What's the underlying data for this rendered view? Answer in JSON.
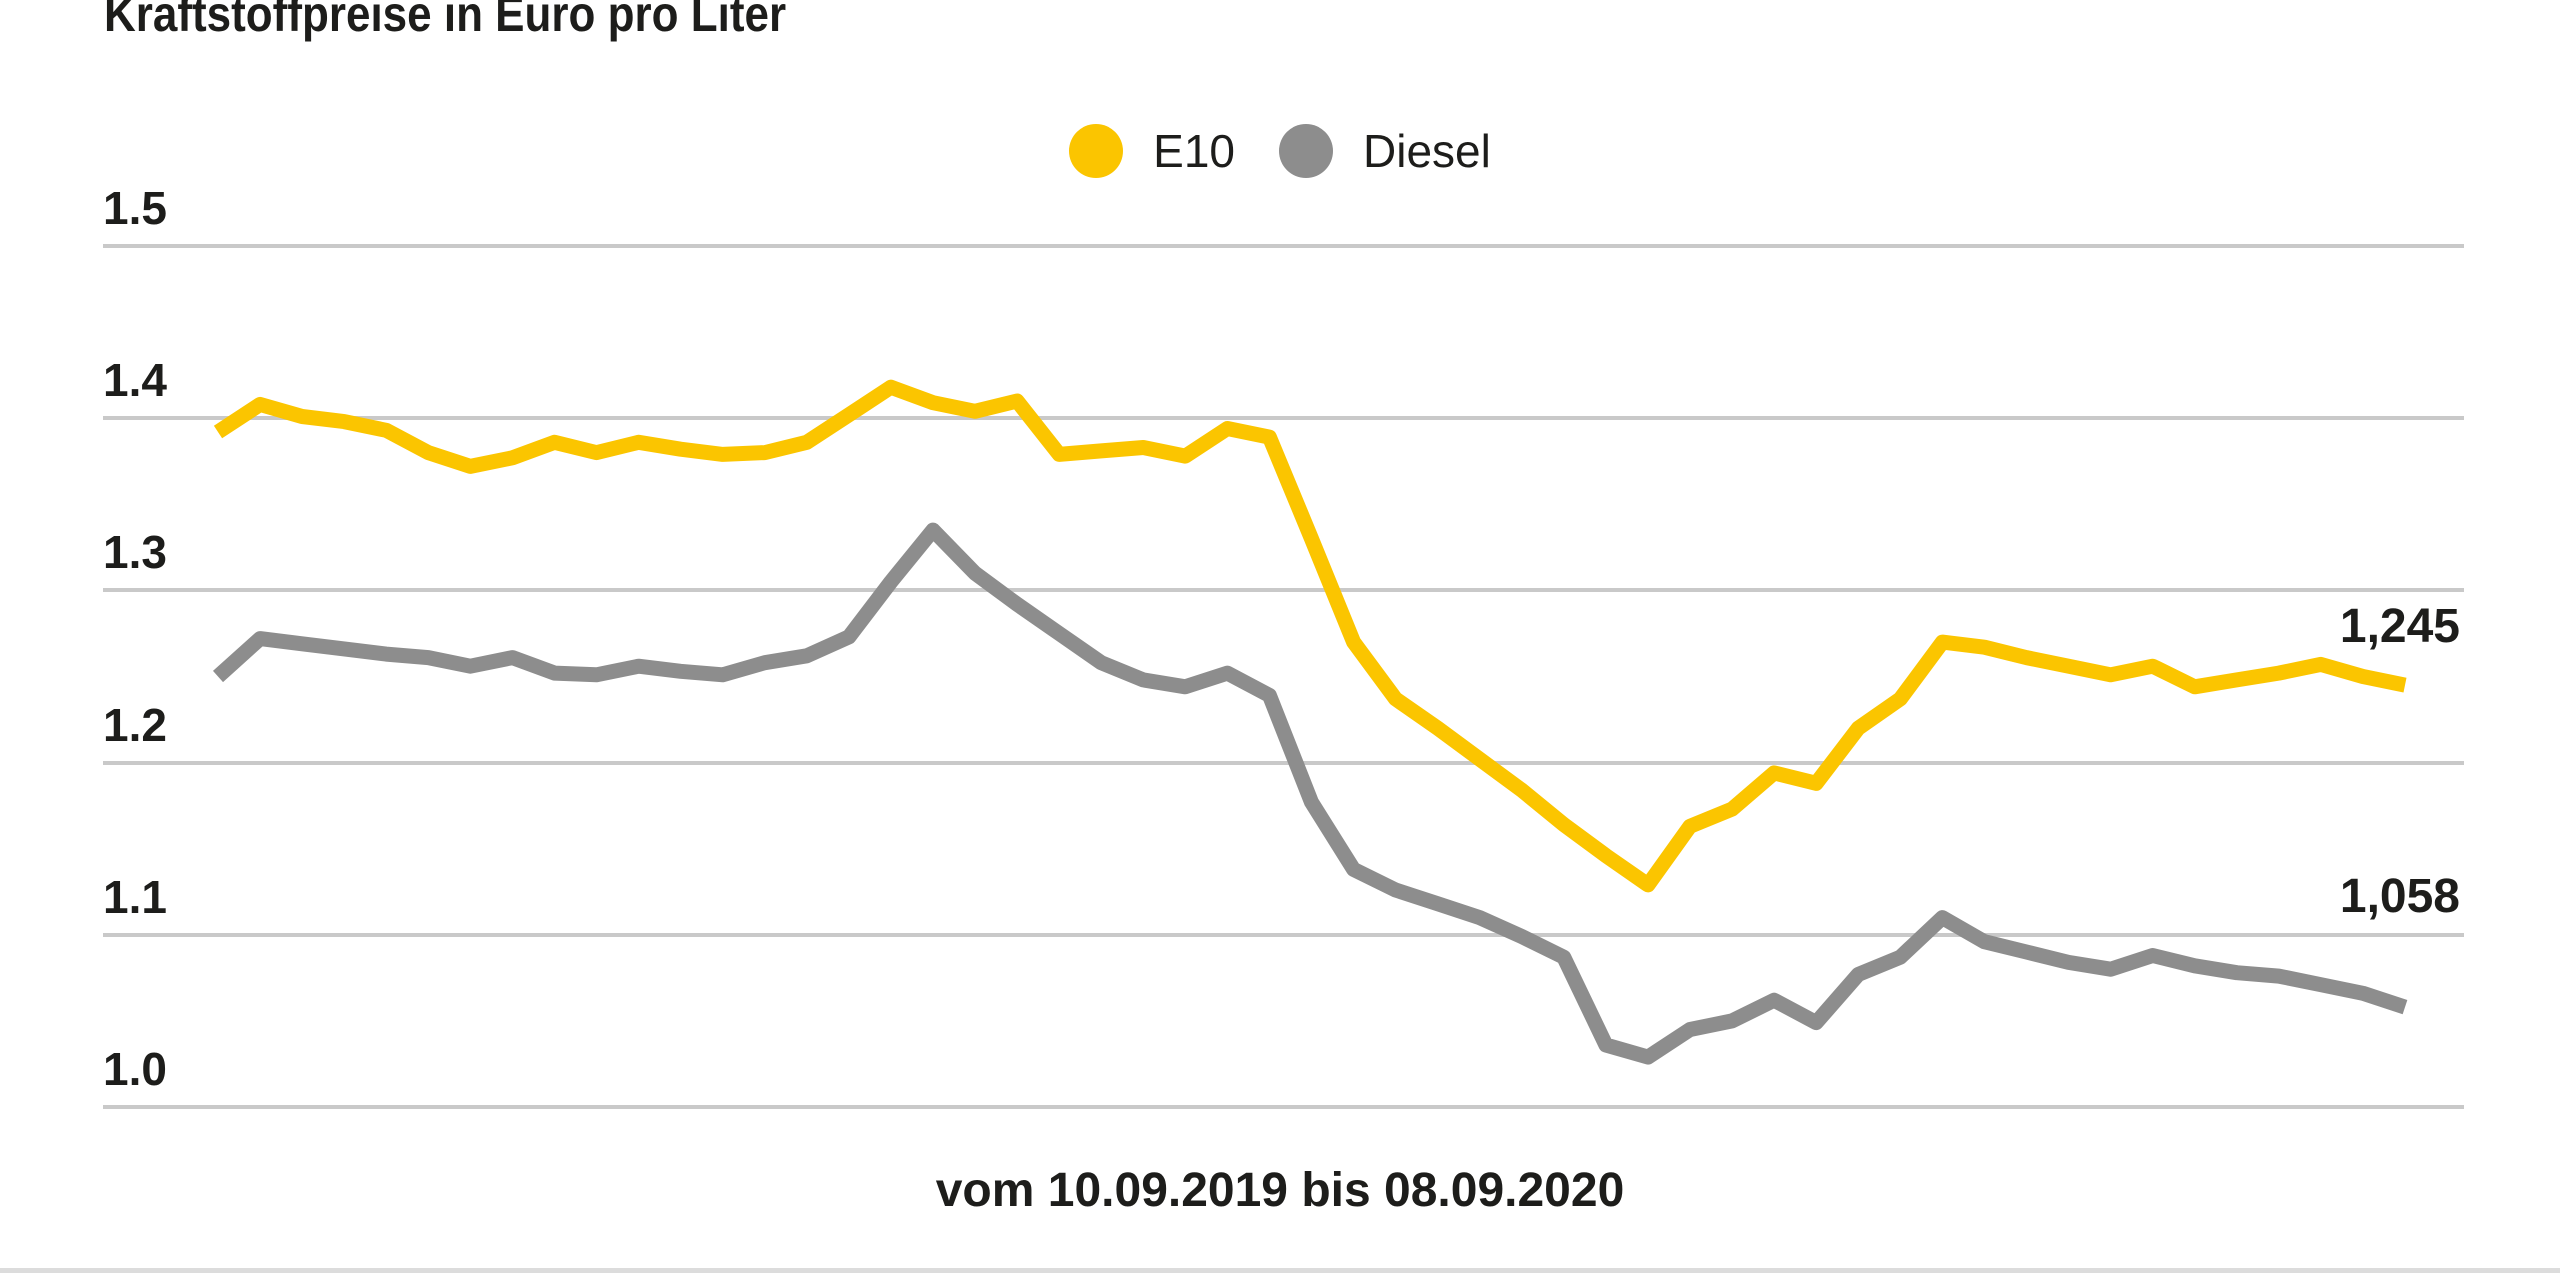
{
  "title": "Kraftstoffpreise in Euro pro Liter",
  "caption": "vom 10.09.2019 bis 08.09.2020",
  "legend": {
    "e10_label": "E10",
    "diesel_label": "Diesel"
  },
  "end_labels": {
    "e10": "1,245",
    "diesel": "1,058"
  },
  "colors": {
    "e10": "#FBC500",
    "diesel": "#8D8D8D",
    "gridline": "#C9C9C9",
    "text": "#1D1D1B",
    "bottom_rule": "#DCDCDC",
    "background": "#FFFFFF"
  },
  "y_tick_labels": [
    "1.5",
    "1.4",
    "1.3",
    "1.2",
    "1.1",
    "1.0"
  ],
  "chart_data": {
    "type": "line",
    "title": "Kraftstoffpreise in Euro pro Liter",
    "unit": "Euro pro Liter",
    "x_range_label": "vom 10.09.2019 bis 08.09.2020",
    "x_start_date": "10.09.2019",
    "x_end_date": "08.09.2020",
    "x_interval": "weekly",
    "n_points": 53,
    "y_ticks": [
      1.5,
      1.4,
      1.3,
      1.2,
      1.1,
      1.0
    ],
    "ylim": [
      0.97,
      1.53
    ],
    "grid": "horizontal",
    "legend_position": "top-center",
    "series": [
      {
        "name": "E10",
        "color": "#FBC500",
        "last_value_label": "1,245",
        "values": [
          1.392,
          1.408,
          1.401,
          1.398,
          1.393,
          1.38,
          1.372,
          1.377,
          1.386,
          1.38,
          1.386,
          1.382,
          1.379,
          1.38,
          1.386,
          1.402,
          1.418,
          1.409,
          1.404,
          1.41,
          1.379,
          1.381,
          1.383,
          1.378,
          1.394,
          1.389,
          1.33,
          1.27,
          1.237,
          1.22,
          1.202,
          1.184,
          1.164,
          1.146,
          1.129,
          1.163,
          1.173,
          1.194,
          1.188,
          1.22,
          1.237,
          1.27,
          1.267,
          1.261,
          1.256,
          1.251,
          1.256,
          1.244,
          1.248,
          1.252,
          1.257,
          1.25,
          1.245
        ]
      },
      {
        "name": "Diesel",
        "color": "#8D8D8D",
        "last_value_label": "1,058",
        "values": [
          1.25,
          1.272,
          1.269,
          1.266,
          1.263,
          1.261,
          1.256,
          1.261,
          1.252,
          1.251,
          1.256,
          1.253,
          1.251,
          1.258,
          1.262,
          1.273,
          1.305,
          1.335,
          1.31,
          1.292,
          1.275,
          1.258,
          1.248,
          1.244,
          1.252,
          1.239,
          1.177,
          1.138,
          1.126,
          1.118,
          1.11,
          1.099,
          1.087,
          1.036,
          1.029,
          1.045,
          1.05,
          1.062,
          1.049,
          1.077,
          1.087,
          1.11,
          1.096,
          1.09,
          1.084,
          1.08,
          1.088,
          1.082,
          1.078,
          1.076,
          1.071,
          1.066,
          1.058
        ]
      }
    ]
  }
}
